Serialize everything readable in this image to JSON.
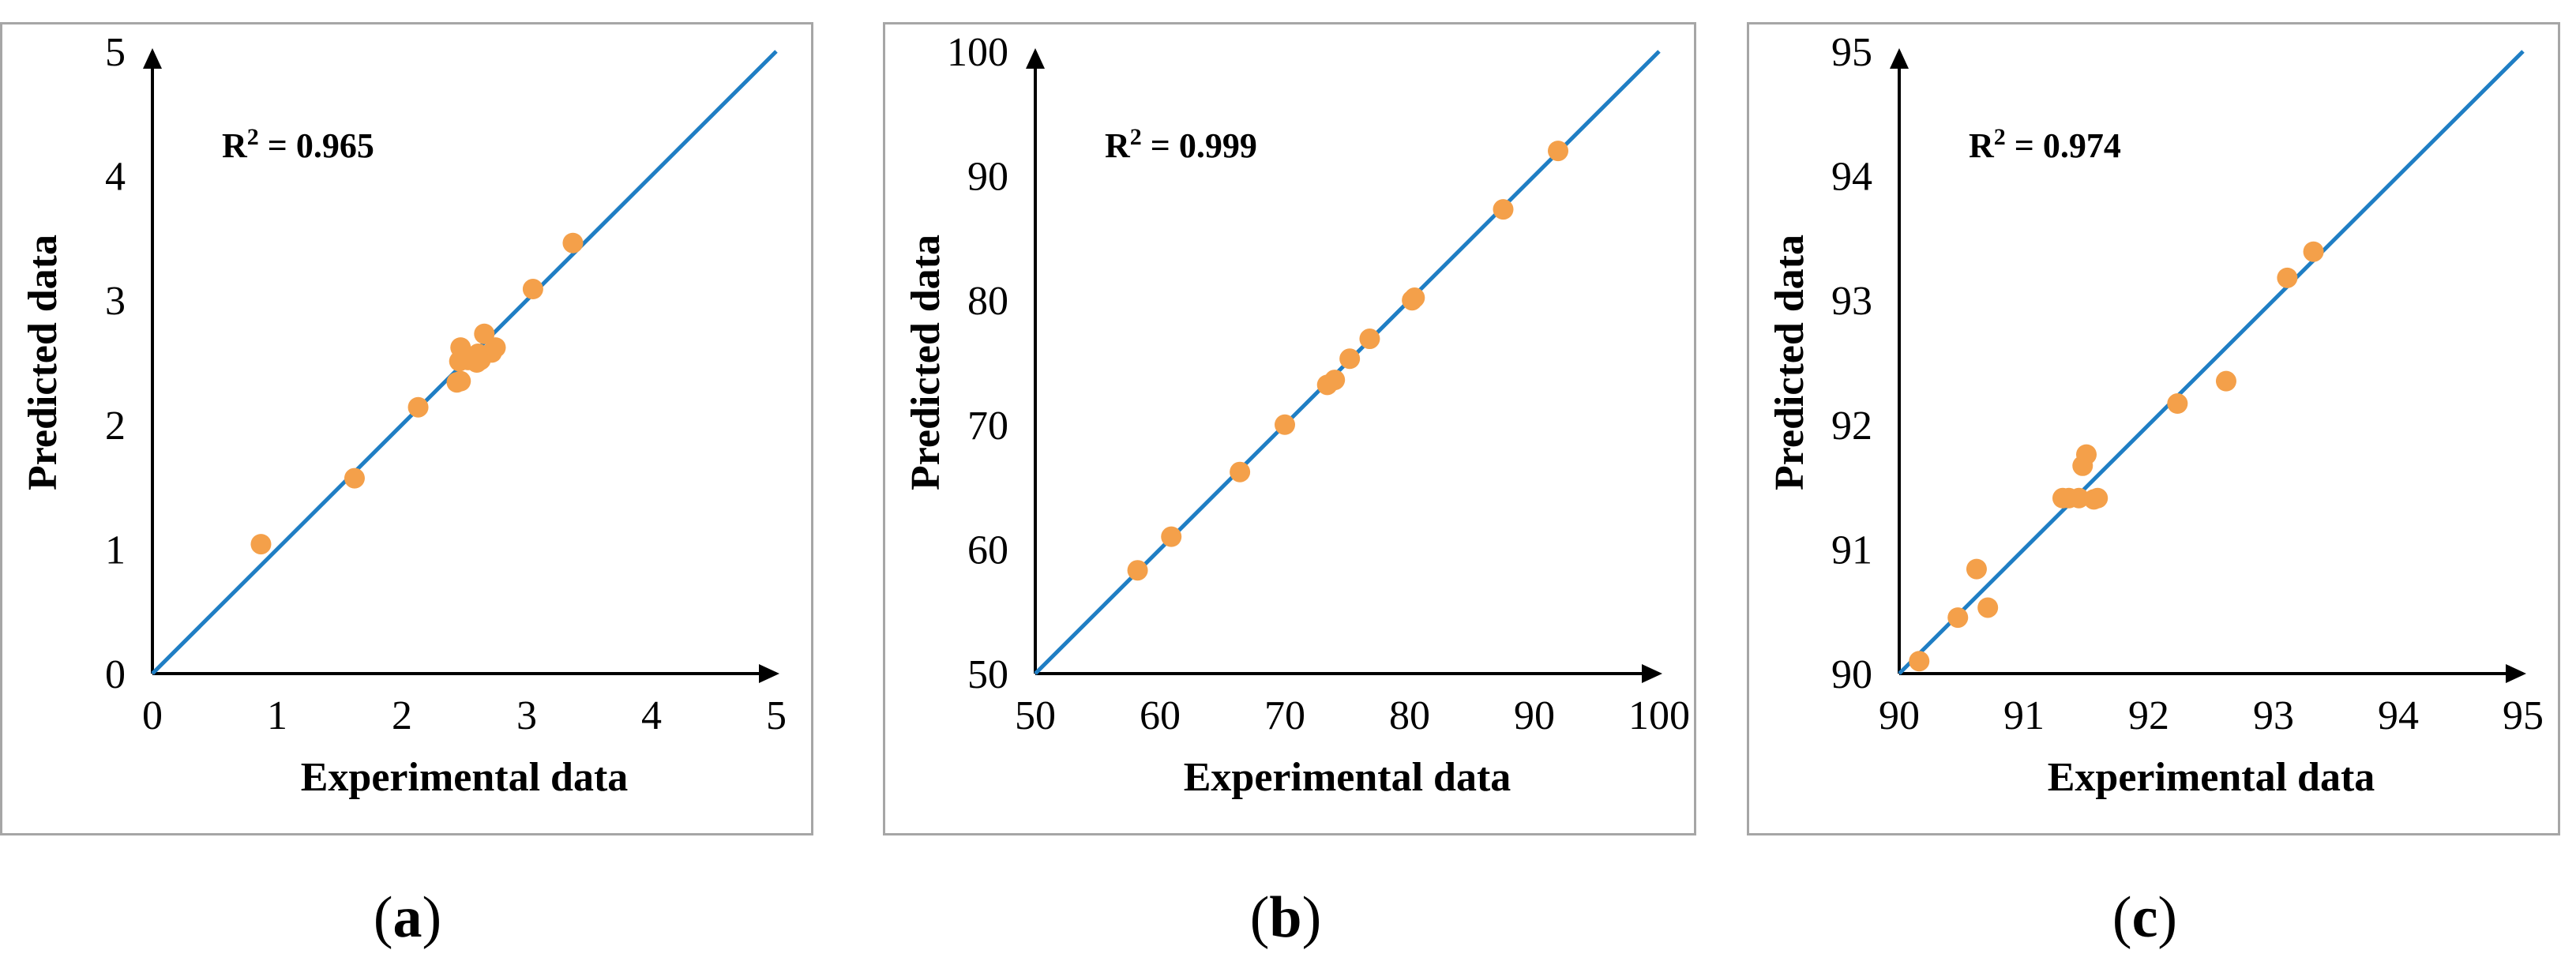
{
  "colors": {
    "point": "#f4a04a",
    "identity_line": "#1f7ec4",
    "axis": "#000000",
    "frame": "#a6a6a6"
  },
  "chart_data": [
    {
      "type": "scatter",
      "panel_label": "a",
      "xlabel": "Experimental data",
      "ylabel": "Predicted data",
      "annotation": {
        "r2_prefix": "R",
        "r2_sup": "2",
        "r2_value": " = 0.965"
      },
      "xlim": [
        0,
        5
      ],
      "ylim": [
        0,
        5
      ],
      "xticks": [
        "0",
        "1",
        "2",
        "3",
        "4",
        "5"
      ],
      "yticks": [
        "0",
        "1",
        "2",
        "3",
        "4",
        "5"
      ],
      "identity_line": [
        [
          0,
          0
        ],
        [
          5,
          5
        ]
      ],
      "points": [
        [
          0.87,
          1.04
        ],
        [
          1.62,
          1.57
        ],
        [
          2.13,
          2.14
        ],
        [
          2.44,
          2.34
        ],
        [
          2.47,
          2.35
        ],
        [
          2.46,
          2.51
        ],
        [
          2.53,
          2.52
        ],
        [
          2.47,
          2.62
        ],
        [
          2.6,
          2.5
        ],
        [
          2.63,
          2.52
        ],
        [
          2.61,
          2.57
        ],
        [
          2.66,
          2.73
        ],
        [
          2.72,
          2.58
        ],
        [
          2.75,
          2.62
        ],
        [
          3.05,
          3.09
        ],
        [
          3.37,
          3.46
        ]
      ]
    },
    {
      "type": "scatter",
      "panel_label": "b",
      "xlabel": "Experimental data",
      "ylabel": "Predicted data",
      "annotation": {
        "r2_prefix": "R",
        "r2_sup": "2",
        "r2_value": " = 0.999"
      },
      "xlim": [
        50,
        100
      ],
      "ylim": [
        50,
        100
      ],
      "xticks": [
        "50",
        "60",
        "70",
        "80",
        "90",
        "100"
      ],
      "yticks": [
        "50",
        "60",
        "70",
        "80",
        "90",
        "100"
      ],
      "identity_line": [
        [
          50,
          50
        ],
        [
          100,
          100
        ]
      ],
      "points": [
        [
          58.2,
          58.3
        ],
        [
          60.9,
          61.0
        ],
        [
          66.4,
          66.2
        ],
        [
          70.0,
          70.0
        ],
        [
          73.4,
          73.2
        ],
        [
          74.0,
          73.6
        ],
        [
          75.2,
          75.3
        ],
        [
          76.8,
          76.9
        ],
        [
          80.2,
          80.0
        ],
        [
          80.4,
          80.2
        ],
        [
          87.5,
          87.3
        ],
        [
          91.9,
          92.0
        ]
      ]
    },
    {
      "type": "scatter",
      "panel_label": "c",
      "xlabel": "Experimental data",
      "ylabel": "Predicted data",
      "annotation": {
        "r2_prefix": "R",
        "r2_sup": "2",
        "r2_value": " = 0.974"
      },
      "xlim": [
        90,
        95
      ],
      "ylim": [
        90,
        95
      ],
      "xticks": [
        "90",
        "91",
        "92",
        "93",
        "94",
        "95"
      ],
      "yticks": [
        "90",
        "91",
        "92",
        "93",
        "94",
        "95"
      ],
      "identity_line": [
        [
          90,
          90
        ],
        [
          95,
          95
        ]
      ],
      "points": [
        [
          90.16,
          90.1
        ],
        [
          90.47,
          90.45
        ],
        [
          90.62,
          90.84
        ],
        [
          90.71,
          90.53
        ],
        [
          91.31,
          91.41
        ],
        [
          91.36,
          91.41
        ],
        [
          91.44,
          91.41
        ],
        [
          91.47,
          91.67
        ],
        [
          91.5,
          91.76
        ],
        [
          91.56,
          91.4
        ],
        [
          91.59,
          91.41
        ],
        [
          92.23,
          92.17
        ],
        [
          92.62,
          92.35
        ],
        [
          93.11,
          93.18
        ],
        [
          93.32,
          93.39
        ]
      ]
    }
  ]
}
